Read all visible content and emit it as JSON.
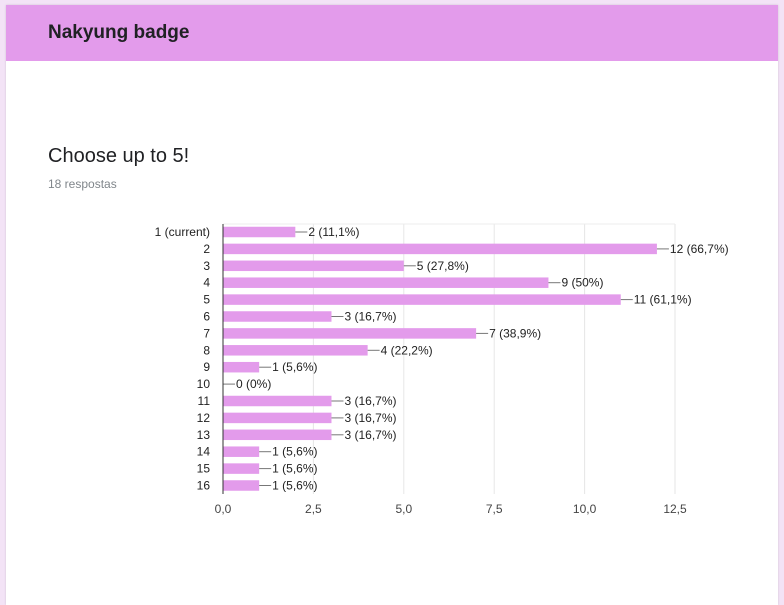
{
  "form": {
    "title": "Nakyung badge",
    "question": "Choose up to 5!",
    "responses": "18 respostas"
  },
  "colors": {
    "header": "#e39beb",
    "bar": "#e39beb"
  },
  "chart_data": {
    "type": "bar",
    "orientation": "horizontal",
    "title": "",
    "xlabel": "",
    "ylabel": "",
    "xlim": [
      0,
      12.5
    ],
    "grid": true,
    "categories": [
      "1 (current)",
      "2",
      "3",
      "4",
      "5",
      "6",
      "7",
      "8",
      "9",
      "10",
      "11",
      "12",
      "13",
      "14",
      "15",
      "16"
    ],
    "values": [
      2,
      12,
      5,
      9,
      11,
      3,
      7,
      4,
      1,
      0,
      3,
      3,
      3,
      1,
      1,
      1
    ],
    "data_labels": [
      "2 (11,1%)",
      "12 (66,7%)",
      "5 (27,8%)",
      "9 (50%)",
      "11 (61,1%)",
      "3 (16,7%)",
      "7 (38,9%)",
      "4 (22,2%)",
      "1 (5,6%)",
      "0 (0%)",
      "3 (16,7%)",
      "3 (16,7%)",
      "3 (16,7%)",
      "1 (5,6%)",
      "1 (5,6%)",
      "1 (5,6%)"
    ],
    "x_ticks": [
      0,
      2.5,
      5,
      7.5,
      10,
      12.5
    ],
    "x_tick_labels": [
      "0,0",
      "2,5",
      "5,0",
      "7,5",
      "10,0",
      "12,5"
    ]
  }
}
